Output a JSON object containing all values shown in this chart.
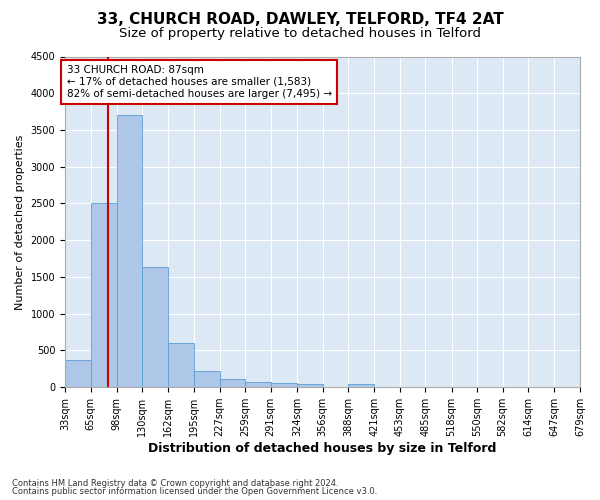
{
  "title_line1": "33, CHURCH ROAD, DAWLEY, TELFORD, TF4 2AT",
  "title_line2": "Size of property relative to detached houses in Telford",
  "xlabel": "Distribution of detached houses by size in Telford",
  "ylabel": "Number of detached properties",
  "footnote_line1": "Contains HM Land Registry data © Crown copyright and database right 2024.",
  "footnote_line2": "Contains public sector information licensed under the Open Government Licence v3.0.",
  "annotation_title": "33 CHURCH ROAD: 87sqm",
  "annotation_line1": "← 17% of detached houses are smaller (1,583)",
  "annotation_line2": "82% of semi-detached houses are larger (7,495) →",
  "property_size_sqm": 87,
  "bar_edges": [
    33,
    65,
    98,
    130,
    162,
    195,
    227,
    259,
    291,
    324,
    356,
    388,
    421,
    453,
    485,
    518,
    550,
    582,
    614,
    647,
    679
  ],
  "bar_values": [
    370,
    2500,
    3700,
    1630,
    600,
    220,
    110,
    70,
    55,
    40,
    0,
    50,
    0,
    0,
    0,
    0,
    0,
    0,
    0,
    0
  ],
  "bar_color": "#aec6e8",
  "bar_edge_color": "#5a9fd4",
  "vline_color": "#cc0000",
  "vline_x": 87,
  "ylim": [
    0,
    4500
  ],
  "yticks": [
    0,
    500,
    1000,
    1500,
    2000,
    2500,
    3000,
    3500,
    4000,
    4500
  ],
  "background_color": "#ffffff",
  "plot_bg_color": "#dce9f5",
  "grid_color": "#ffffff",
  "annotation_box_color": "#cc0000",
  "title_fontsize": 11,
  "subtitle_fontsize": 9.5,
  "axis_label_fontsize": 8,
  "tick_label_fontsize": 7,
  "annotation_fontsize": 7.5,
  "ylabel_fontsize": 8
}
